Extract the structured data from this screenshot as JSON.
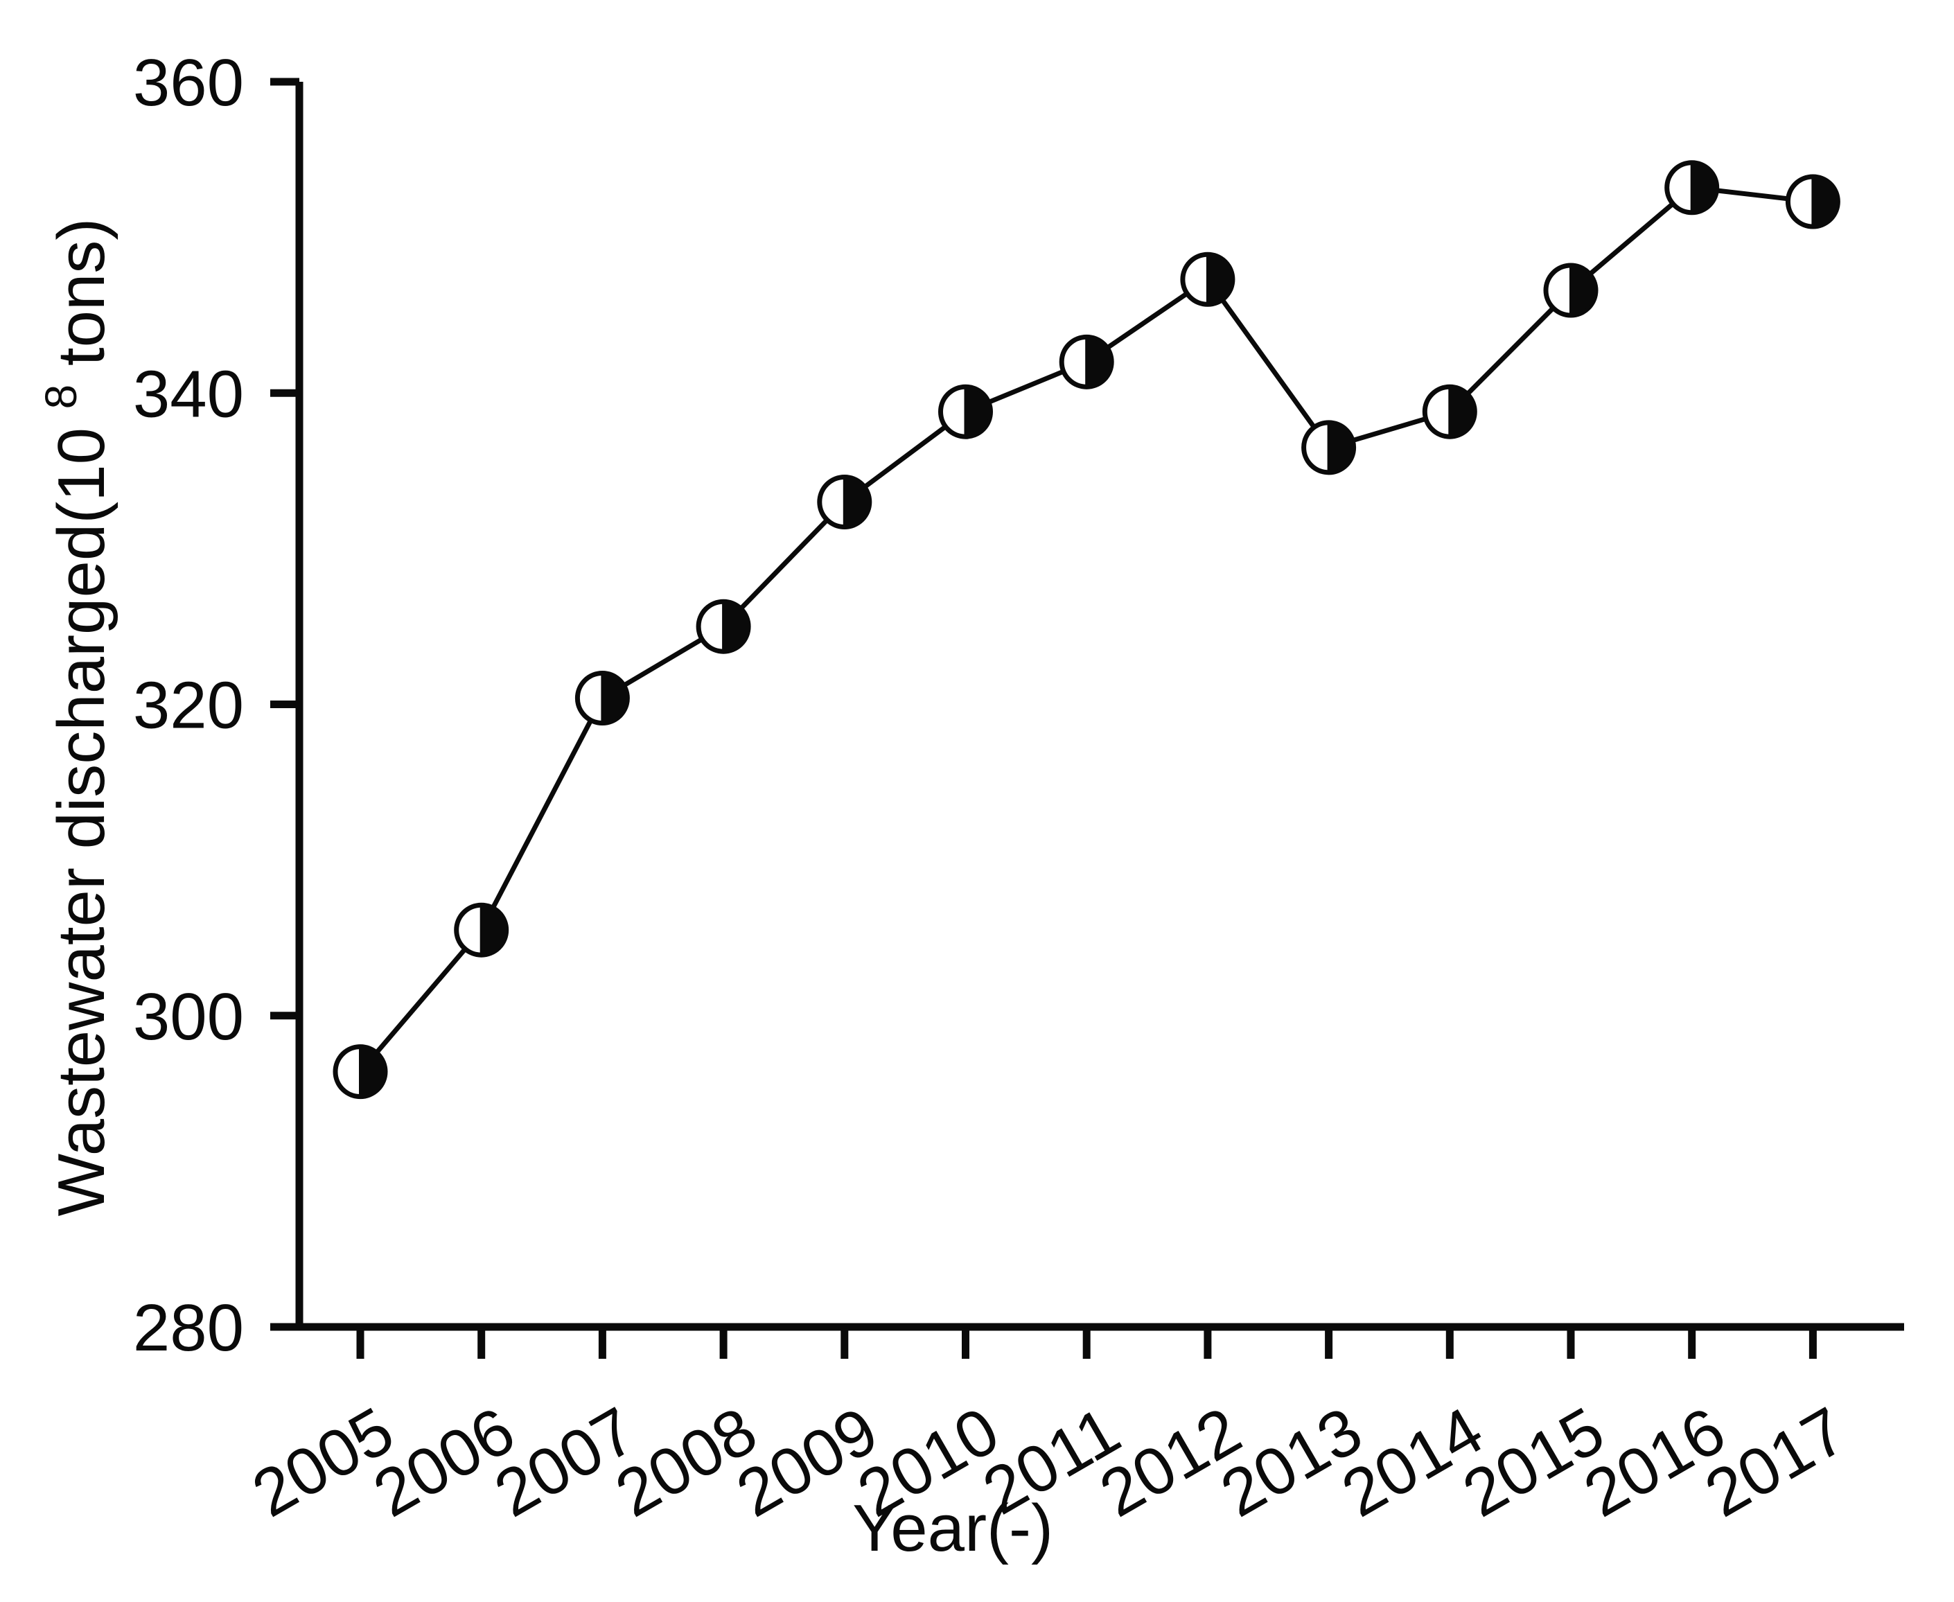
{
  "figure": {
    "background": "#ffffff",
    "ink_color": "#0a0a0a"
  },
  "chart_data": {
    "type": "line",
    "title": "",
    "xlabel": "Year(-)",
    "ylabel": "Wastewater discharged(10^8 tons)",
    "ylabel_parts": {
      "base": "Wastewater discharged(10",
      "superscript": "8",
      "suffix": " tons)"
    },
    "categories": [
      "2005",
      "2006",
      "2007",
      "2008",
      "2009",
      "2010",
      "2011",
      "2012",
      "2013",
      "2014",
      "2015",
      "2016",
      "2017"
    ],
    "series": [
      {
        "name": "Wastewater discharged",
        "values": [
          296.4,
          305.5,
          320.4,
          325.0,
          333.0,
          338.8,
          342.0,
          347.3,
          336.5,
          338.8,
          346.6,
          353.2,
          352.3
        ]
      }
    ],
    "ylim": [
      280,
      360
    ],
    "yticks": [
      280,
      300,
      320,
      340,
      360
    ],
    "xtick_rotation_deg": -30,
    "grid": false,
    "legend_position": "none",
    "marker_style": "circle-right-half-filled",
    "line_color": "#0a0a0a",
    "marker_fill_left": "#ffffff",
    "marker_fill_right": "#0a0a0a"
  }
}
